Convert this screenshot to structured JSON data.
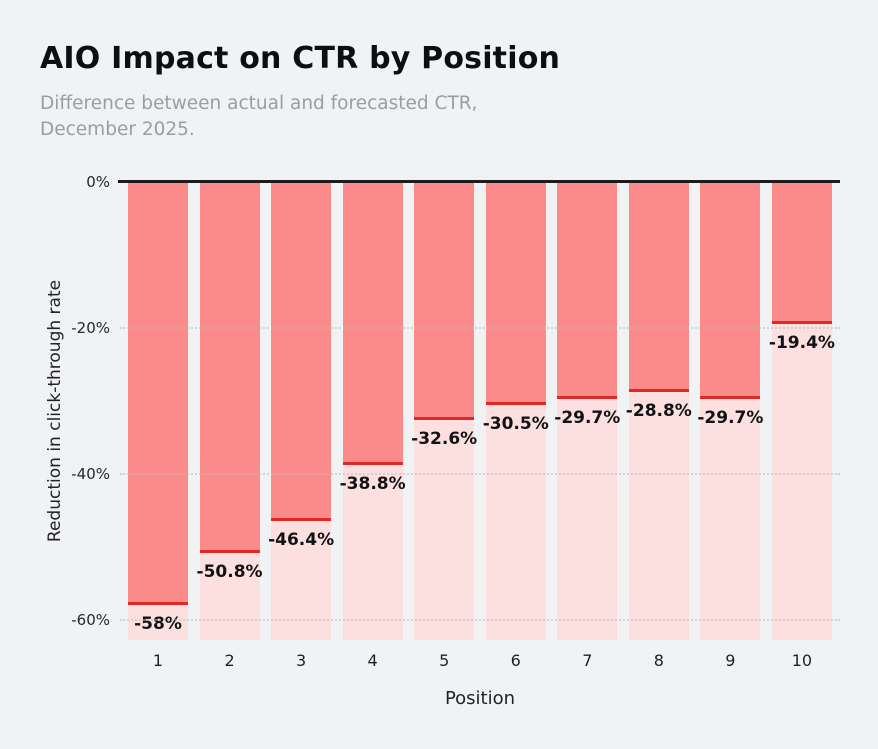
{
  "header": {
    "title": "AIO Impact on CTR by Position",
    "subtitle_line1": "Difference between actual and forecasted CTR,",
    "subtitle_line2": "December 2025."
  },
  "chart_data": {
    "type": "bar",
    "title": "AIO Impact on CTR by Position",
    "subtitle": "Difference between actual and forecasted CTR, December 2025.",
    "xlabel": "Position",
    "ylabel": "Reduction in click-through rate",
    "categories": [
      "1",
      "2",
      "3",
      "4",
      "5",
      "6",
      "7",
      "8",
      "9",
      "10"
    ],
    "values": [
      -58,
      -50.8,
      -46.4,
      -38.8,
      -32.6,
      -30.5,
      -29.7,
      -28.8,
      -29.7,
      -19.4
    ],
    "value_labels": [
      "-58%",
      "-50.8%",
      "-46.4%",
      "-38.8%",
      "-32.6%",
      "-30.5%",
      "-29.7%",
      "-28.8%",
      "-29.7%",
      "-19.4%"
    ],
    "yticks": [
      {
        "value": 0,
        "label": "0%"
      },
      {
        "value": -20,
        "label": "-20%"
      },
      {
        "value": -40,
        "label": "-40%"
      },
      {
        "value": -60,
        "label": "-60%"
      }
    ],
    "ylim": [
      -62.75,
      0
    ],
    "grid": "dotted-horizontal",
    "legend": "none",
    "colors": {
      "background": "#f1f2f4",
      "bar_fill": "#fb8b8b",
      "bar_below_fill": "#fcdfdf",
      "marker_line": "#e32626",
      "zero_axis": "#1c1c1e",
      "gridline": "#b9bcc2",
      "title_text": "#0d0e10",
      "subtitle_text": "#9a9da2",
      "value_label_text": "#111214"
    }
  }
}
